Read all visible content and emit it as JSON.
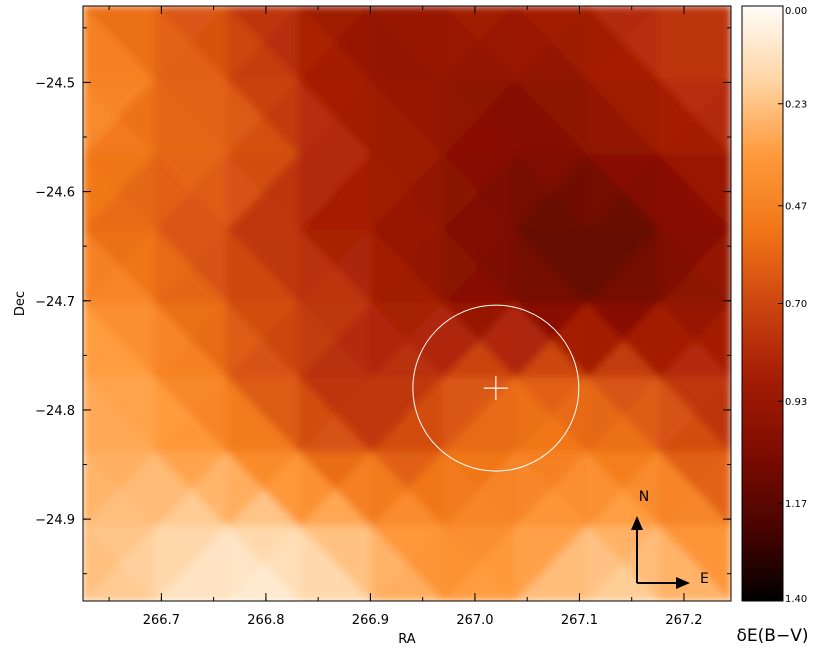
{
  "chart_data": {
    "type": "heatmap",
    "title": "",
    "xlabel": "RA",
    "ylabel": "Dec",
    "xlim": [
      266.625,
      267.245
    ],
    "ylim": [
      -24.975,
      -24.43
    ],
    "x_ticks": [
      {
        "value": 266.7,
        "label": "266.7"
      },
      {
        "value": 266.8,
        "label": "266.8"
      },
      {
        "value": 266.9,
        "label": "266.9"
      },
      {
        "value": 267.0,
        "label": "267.0"
      },
      {
        "value": 267.1,
        "label": "267.1"
      },
      {
        "value": 267.2,
        "label": "267.2"
      }
    ],
    "y_ticks": [
      {
        "value": -24.5,
        "label": "−24.5"
      },
      {
        "value": -24.6,
        "label": "−24.6"
      },
      {
        "value": -24.7,
        "label": "−24.7"
      },
      {
        "value": -24.8,
        "label": "−24.8"
      },
      {
        "value": -24.9,
        "label": "−24.9"
      }
    ],
    "grid": false,
    "colorbar": {
      "label": "δE(B−V)",
      "range": [
        0.0,
        1.4
      ],
      "ticks": [
        "0.00",
        "0.23",
        "0.47",
        "0.70",
        "0.93",
        "1.17",
        "1.40"
      ],
      "tick_values": [
        0.0,
        0.23,
        0.47,
        0.7,
        0.93,
        1.17,
        1.4
      ],
      "placement": "right"
    },
    "colormap": [
      {
        "v": 0.0,
        "color": "#fffcf8"
      },
      {
        "v": 0.12,
        "color": "#ffd7a8"
      },
      {
        "v": 0.25,
        "color": "#ff9a3c"
      },
      {
        "v": 0.38,
        "color": "#f07516"
      },
      {
        "v": 0.5,
        "color": "#cc4610"
      },
      {
        "v": 0.62,
        "color": "#a51e05"
      },
      {
        "v": 0.75,
        "color": "#7f0c00"
      },
      {
        "v": 0.88,
        "color": "#480400"
      },
      {
        "v": 1.0,
        "color": "#000000"
      }
    ],
    "grid_values": {
      "ra": [
        266.625,
        266.6939,
        266.7628,
        266.8317,
        266.9006,
        266.9694,
        267.0383,
        267.1072,
        267.1761,
        267.245
      ],
      "dec": [
        -24.43,
        -24.4981,
        -24.5663,
        -24.6344,
        -24.7025,
        -24.7706,
        -24.8388,
        -24.9069,
        -24.975
      ],
      "values": [
        [
          0.55,
          0.6,
          0.7,
          0.85,
          0.95,
          0.9,
          0.85,
          0.85,
          0.75,
          0.8
        ],
        [
          0.35,
          0.55,
          0.65,
          0.8,
          0.95,
          0.95,
          1.0,
          0.95,
          0.8,
          0.75
        ],
        [
          0.45,
          0.6,
          0.55,
          0.75,
          0.85,
          0.95,
          1.05,
          1.0,
          0.95,
          0.85
        ],
        [
          0.55,
          0.6,
          0.7,
          0.85,
          0.9,
          1.0,
          1.1,
          1.2,
          1.1,
          0.95
        ],
        [
          0.35,
          0.5,
          0.65,
          0.7,
          0.8,
          0.95,
          1.05,
          1.1,
          1.05,
          0.9
        ],
        [
          0.3,
          0.35,
          0.55,
          0.75,
          0.85,
          0.7,
          0.6,
          0.65,
          0.7,
          0.85
        ],
        [
          0.3,
          0.3,
          0.4,
          0.55,
          0.7,
          0.6,
          0.5,
          0.5,
          0.55,
          0.75
        ],
        [
          0.25,
          0.2,
          0.15,
          0.2,
          0.3,
          0.45,
          0.4,
          0.3,
          0.3,
          0.5
        ],
        [
          0.25,
          0.15,
          0.05,
          0.08,
          0.2,
          0.35,
          0.3,
          0.15,
          0.2,
          0.3
        ]
      ]
    },
    "annotations": {
      "circle": {
        "center_ra": 267.02,
        "center_dec": -24.78,
        "radius_deg_dec": 0.076,
        "color": "#ffffff"
      },
      "cross": {
        "ra": 267.02,
        "dec": -24.78,
        "color": "#ffffff"
      },
      "compass": {
        "north_label": "N",
        "east_label": "E",
        "placement": "bottom-right"
      }
    }
  }
}
